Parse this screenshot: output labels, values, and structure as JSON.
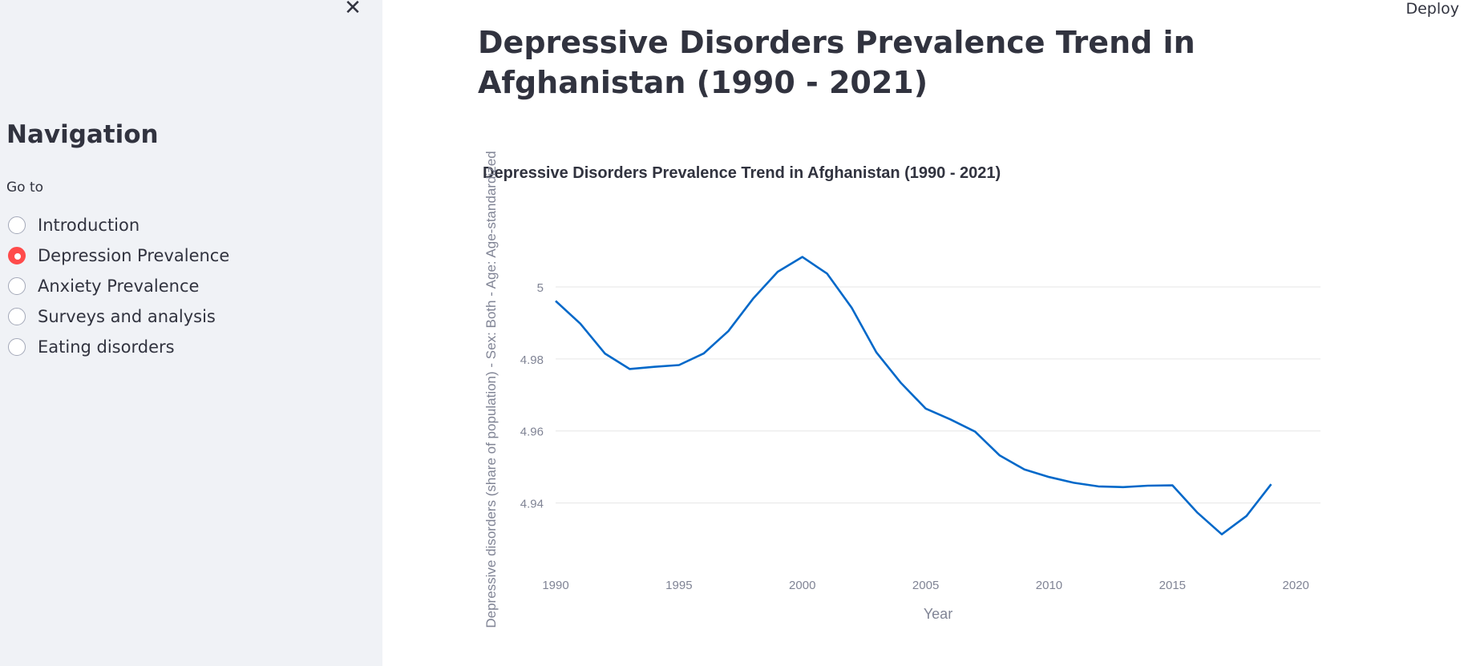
{
  "sidebar": {
    "close_icon": "close-icon",
    "close_glyph": "✕",
    "title": "Navigation",
    "radio_label": "Go to",
    "options": [
      {
        "label": "Introduction",
        "checked": false
      },
      {
        "label": "Depression Prevalence",
        "checked": true
      },
      {
        "label": "Anxiety Prevalence",
        "checked": false
      },
      {
        "label": "Surveys and analysis",
        "checked": false
      },
      {
        "label": "Eating disorders",
        "checked": false
      }
    ],
    "accent_color": "#ff4b4b"
  },
  "header": {
    "deploy_label": "Deploy"
  },
  "main": {
    "title": "Depressive Disorders Prevalence Trend in Afghanistan (1990 - 2021)"
  },
  "chart_data": {
    "type": "line",
    "title": "Depressive Disorders Prevalence Trend in Afghanistan (1990 - 2021)",
    "xlabel": "Year",
    "ylabel": "Depressive disorders (share of population) - Sex: Both - Age: Age-standardized",
    "x_ticks": [
      1990,
      1995,
      2000,
      2005,
      2010,
      2015,
      2020
    ],
    "y_ticks": [
      4.94,
      4.96,
      4.98,
      5
    ],
    "y_tick_labels": [
      "4.94",
      "4.96",
      "4.98",
      "5"
    ],
    "xlim": [
      1990,
      2021
    ],
    "ylim": [
      4.925,
      5.01
    ],
    "grid": true,
    "line_color": "#0068c9",
    "series": [
      {
        "x": [
          1990,
          1991,
          1992,
          1993,
          1994,
          1995,
          1996,
          1997,
          1998,
          1999,
          2000,
          2001,
          2002,
          2003,
          2004,
          2005,
          2006,
          2007,
          2008,
          2009,
          2010,
          2011,
          2012,
          2013,
          2014,
          2015,
          2016,
          2017,
          2018,
          2019
        ],
        "values": [
          4.9961,
          4.9898,
          4.9815,
          4.9772,
          4.9778,
          4.9783,
          4.9815,
          4.9877,
          4.9967,
          5.0042,
          5.0083,
          5.0037,
          4.9942,
          4.9818,
          4.9733,
          4.9662,
          4.9632,
          4.9598,
          4.9532,
          4.9493,
          4.9472,
          4.9456,
          4.9446,
          4.9444,
          4.9448,
          4.9449,
          4.9374,
          4.9313,
          4.9364,
          4.9452
        ]
      }
    ]
  }
}
